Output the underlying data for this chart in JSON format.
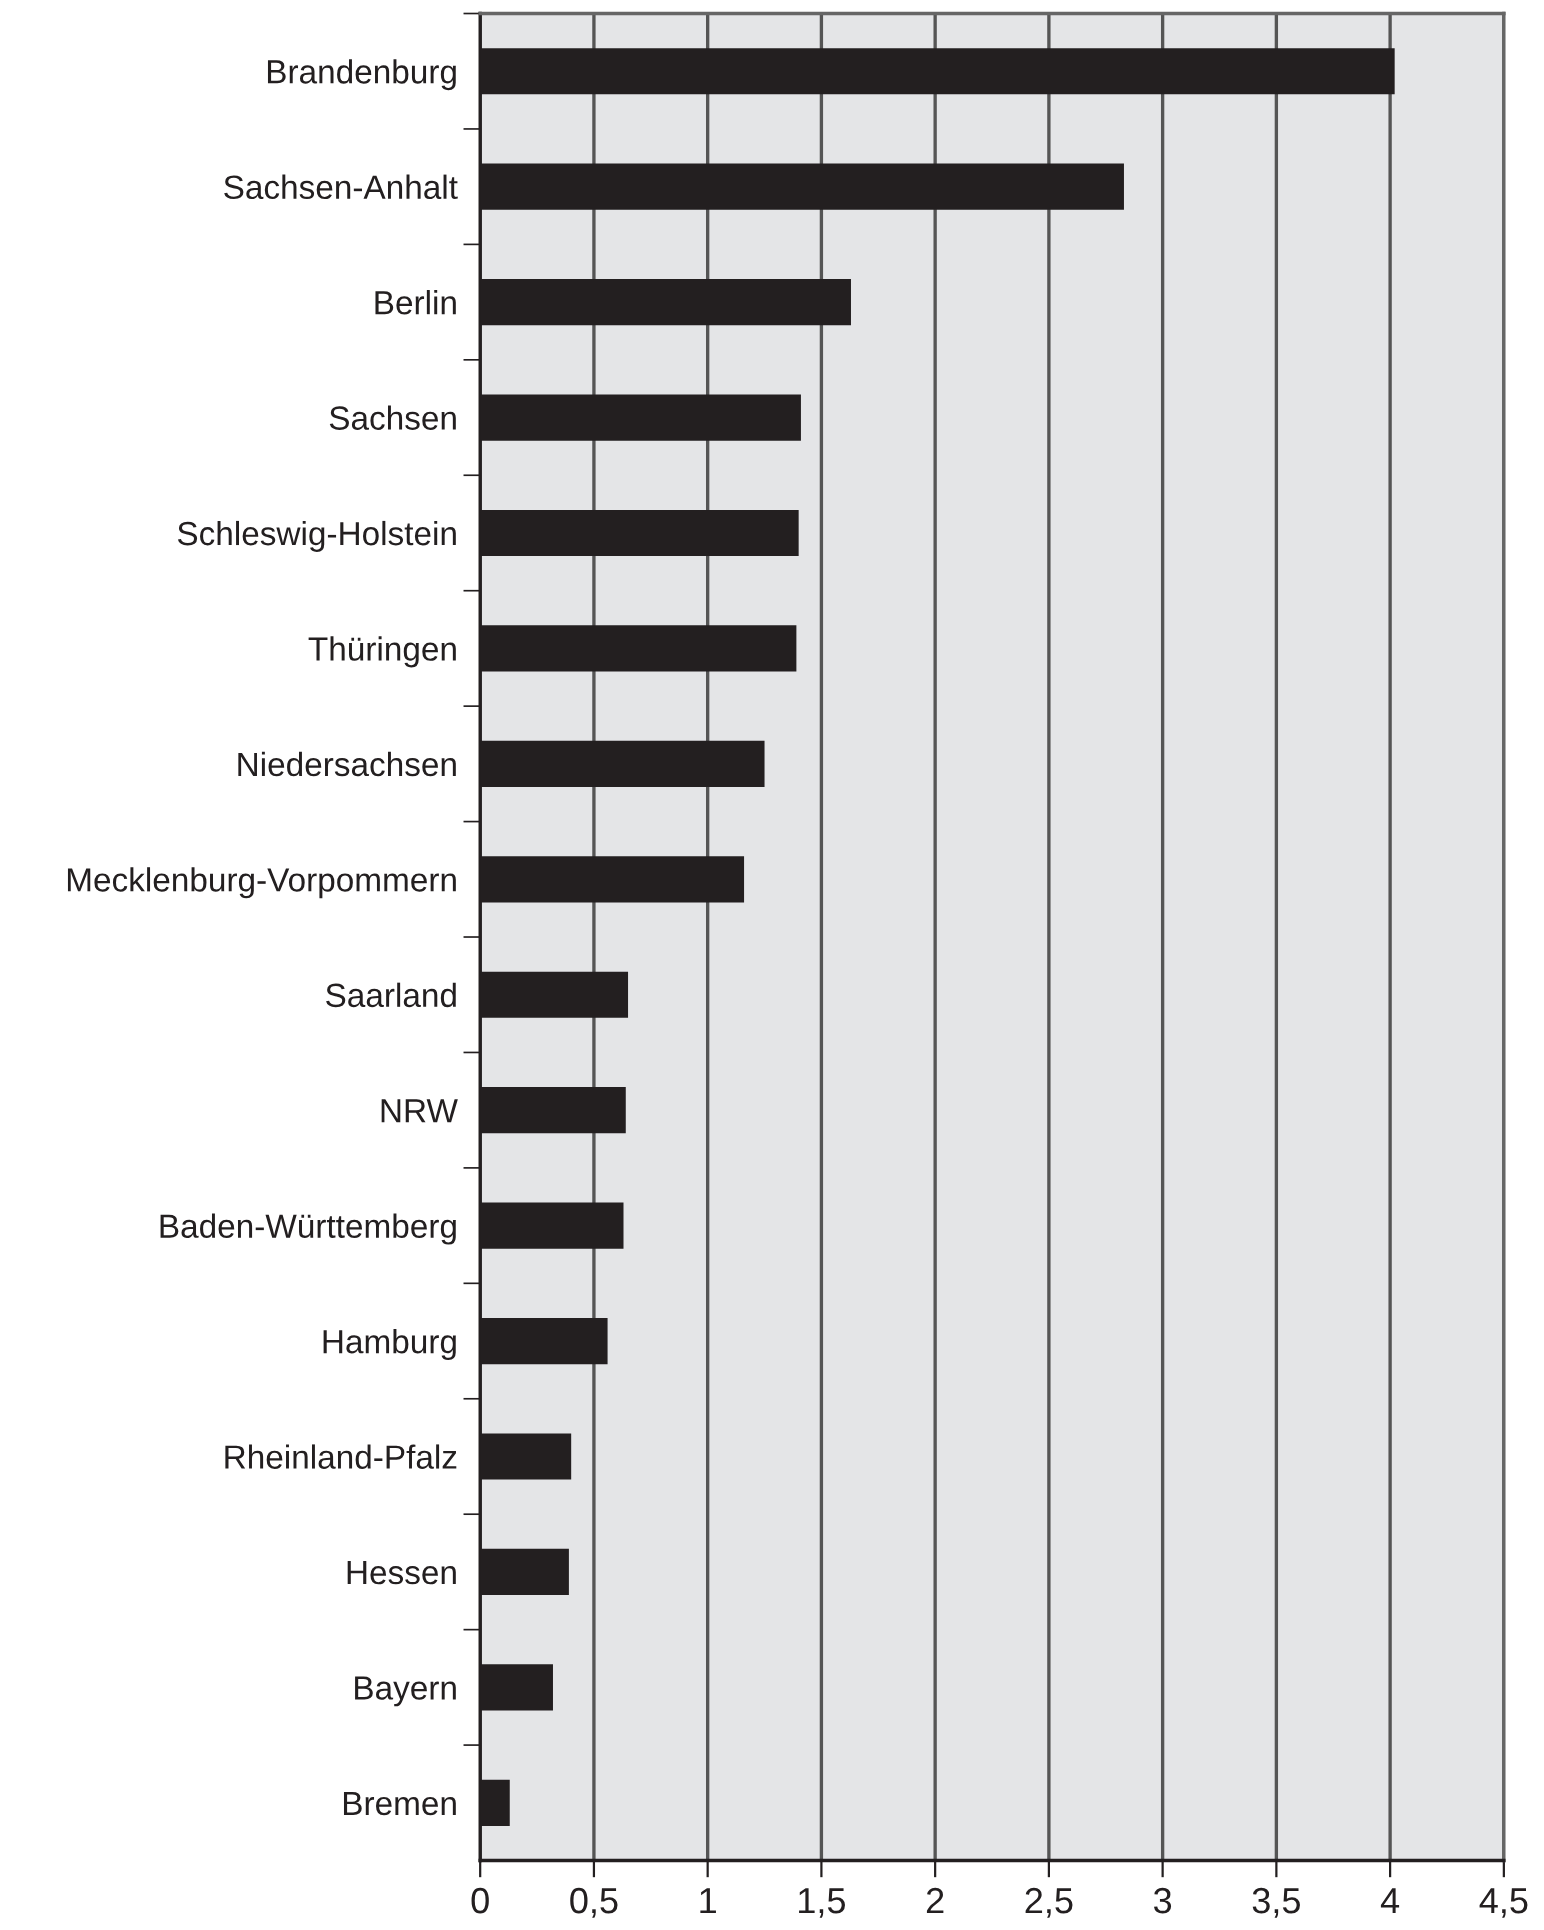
{
  "chart_data": {
    "type": "bar",
    "orientation": "horizontal",
    "categories": [
      "Brandenburg",
      "Sachsen-Anhalt",
      "Berlin",
      "Sachsen",
      "Schleswig-Holstein",
      "Thüringen",
      "Niedersachsen",
      "Mecklenburg-Vorpommern",
      "Saarland",
      "NRW",
      "Baden-Württemberg",
      "Hamburg",
      "Rheinland-Pfalz",
      "Hessen",
      "Bayern",
      "Bremen"
    ],
    "values": [
      4.02,
      2.83,
      1.63,
      1.41,
      1.4,
      1.39,
      1.25,
      1.16,
      0.65,
      0.64,
      0.63,
      0.56,
      0.4,
      0.39,
      0.32,
      0.13
    ],
    "color": "#231f20",
    "xlim": [
      0,
      4.5
    ],
    "xticks": [
      0,
      {
        "value": 0.5,
        "label": "0,5"
      },
      1,
      {
        "value": 1.5,
        "label": "1,5"
      },
      2,
      {
        "value": 2.5,
        "label": "2,5"
      },
      3,
      {
        "value": 3.5,
        "label": "3,5"
      },
      4,
      {
        "value": 4.5,
        "label": "4,5"
      }
    ],
    "grid": "x",
    "legend": false
  }
}
